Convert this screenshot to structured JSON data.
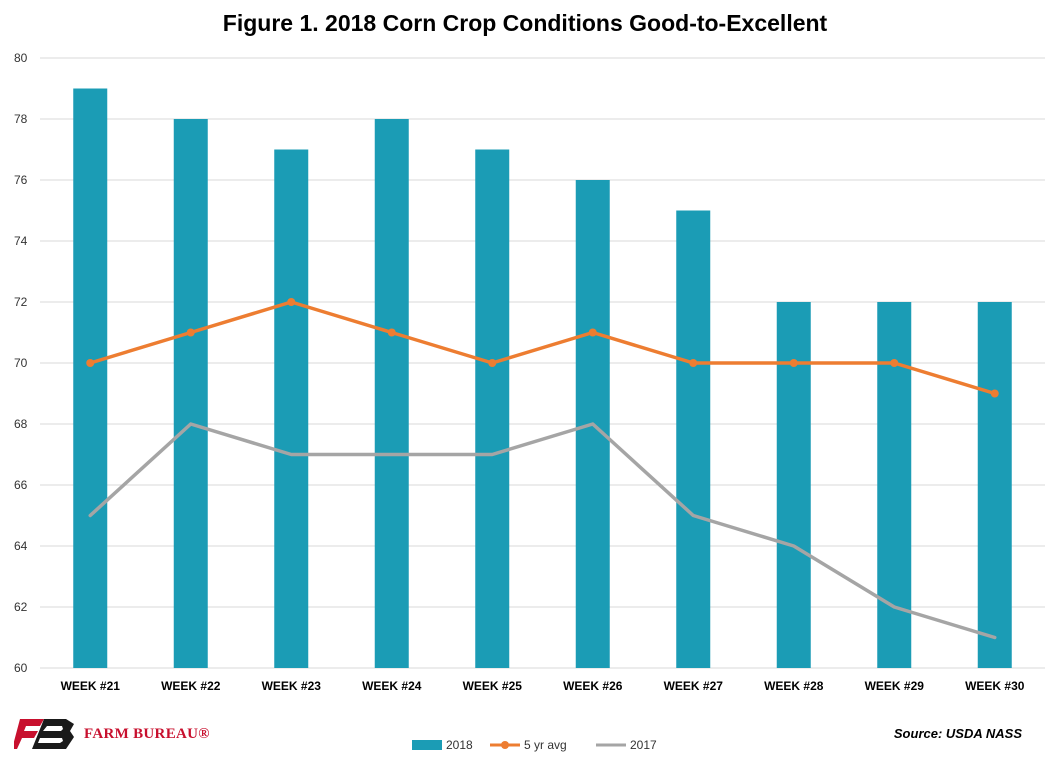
{
  "chart_data": {
    "type": "bar",
    "title": "Figure 1. 2018 Corn Crop Conditions Good-to-Excellent",
    "categories": [
      "WEEK #21",
      "WEEK #22",
      "WEEK #23",
      "WEEK #24",
      "WEEK #25",
      "WEEK #26",
      "WEEK #27",
      "WEEK #28",
      "WEEK #29",
      "WEEK #30"
    ],
    "ylim": [
      60,
      80
    ],
    "yticks": [
      60,
      62,
      64,
      66,
      68,
      70,
      72,
      74,
      76,
      78,
      80
    ],
    "grid": true,
    "legend_position": "bottom",
    "series": [
      {
        "name": "2018",
        "type": "bar",
        "color": "#1b9cb5",
        "values": [
          79,
          78,
          77,
          78,
          77,
          76,
          75,
          72,
          72,
          72
        ]
      },
      {
        "name": "5 yr avg",
        "type": "line",
        "marker": "circle",
        "color": "#ed7d31",
        "values": [
          70,
          71,
          72,
          71,
          70,
          71,
          70,
          70,
          70,
          69
        ]
      },
      {
        "name": "2017",
        "type": "line",
        "marker": "none",
        "color": "#a5a5a5",
        "values": [
          65,
          68,
          67,
          67,
          67,
          68,
          65,
          64,
          62,
          61
        ]
      }
    ]
  },
  "footer": {
    "logo_text": "FARM BUREAU®",
    "logo_mark": "FB",
    "source": "Source: USDA NASS"
  }
}
